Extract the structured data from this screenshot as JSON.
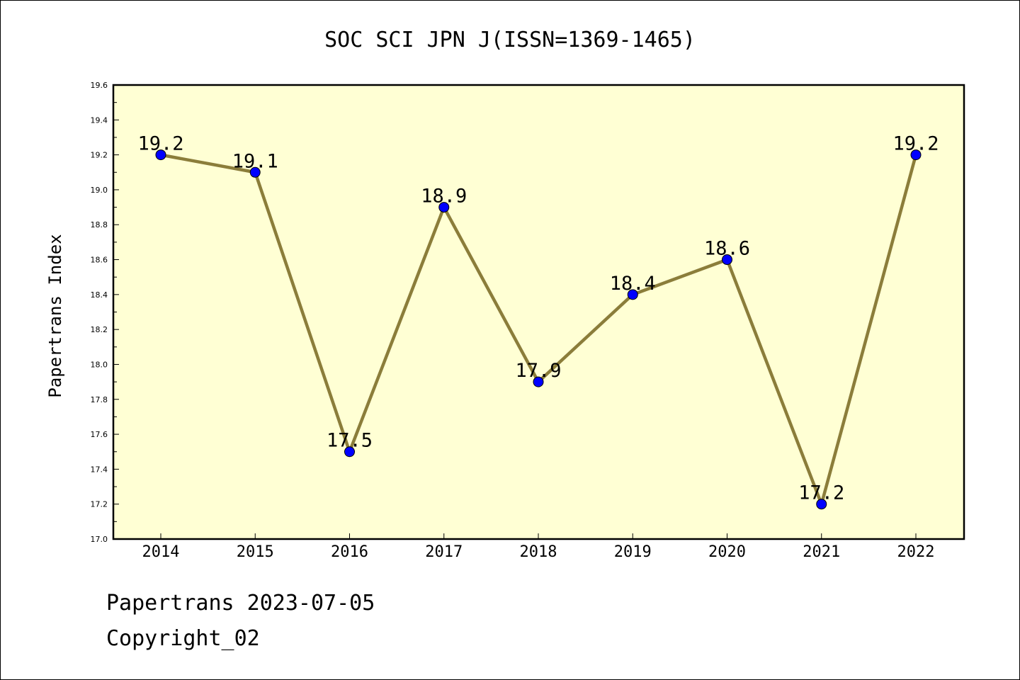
{
  "chart_data": {
    "type": "line",
    "title": "SOC SCI JPN J(ISSN=1369-1465)",
    "xlabel": "",
    "ylabel": "Papertrans Index",
    "categories": [
      "2014",
      "2015",
      "2016",
      "2017",
      "2018",
      "2019",
      "2020",
      "2021",
      "2022"
    ],
    "series": [
      {
        "values": [
          19.2,
          19.1,
          17.5,
          18.9,
          17.9,
          18.4,
          18.6,
          17.2,
          19.2
        ],
        "data_labels": [
          "19.2",
          "19.1",
          "17.5",
          "18.9",
          "17.9",
          "18.4",
          "18.6",
          "17.2",
          "19.2"
        ],
        "line_color": "#8b7d3a",
        "marker_color": "#0000ff"
      }
    ],
    "ylim": [
      17.0,
      19.6
    ],
    "yticks": [
      "17.0",
      "17.2",
      "17.4",
      "17.6",
      "17.8",
      "18.0",
      "18.2",
      "18.4",
      "18.6",
      "18.8",
      "19.0",
      "19.2",
      "19.4",
      "19.6"
    ],
    "plot_background": "#ffffd4",
    "grid": false
  },
  "footer": {
    "source": "Papertrans 2023-07-05",
    "copyright": "Copyright_02"
  }
}
